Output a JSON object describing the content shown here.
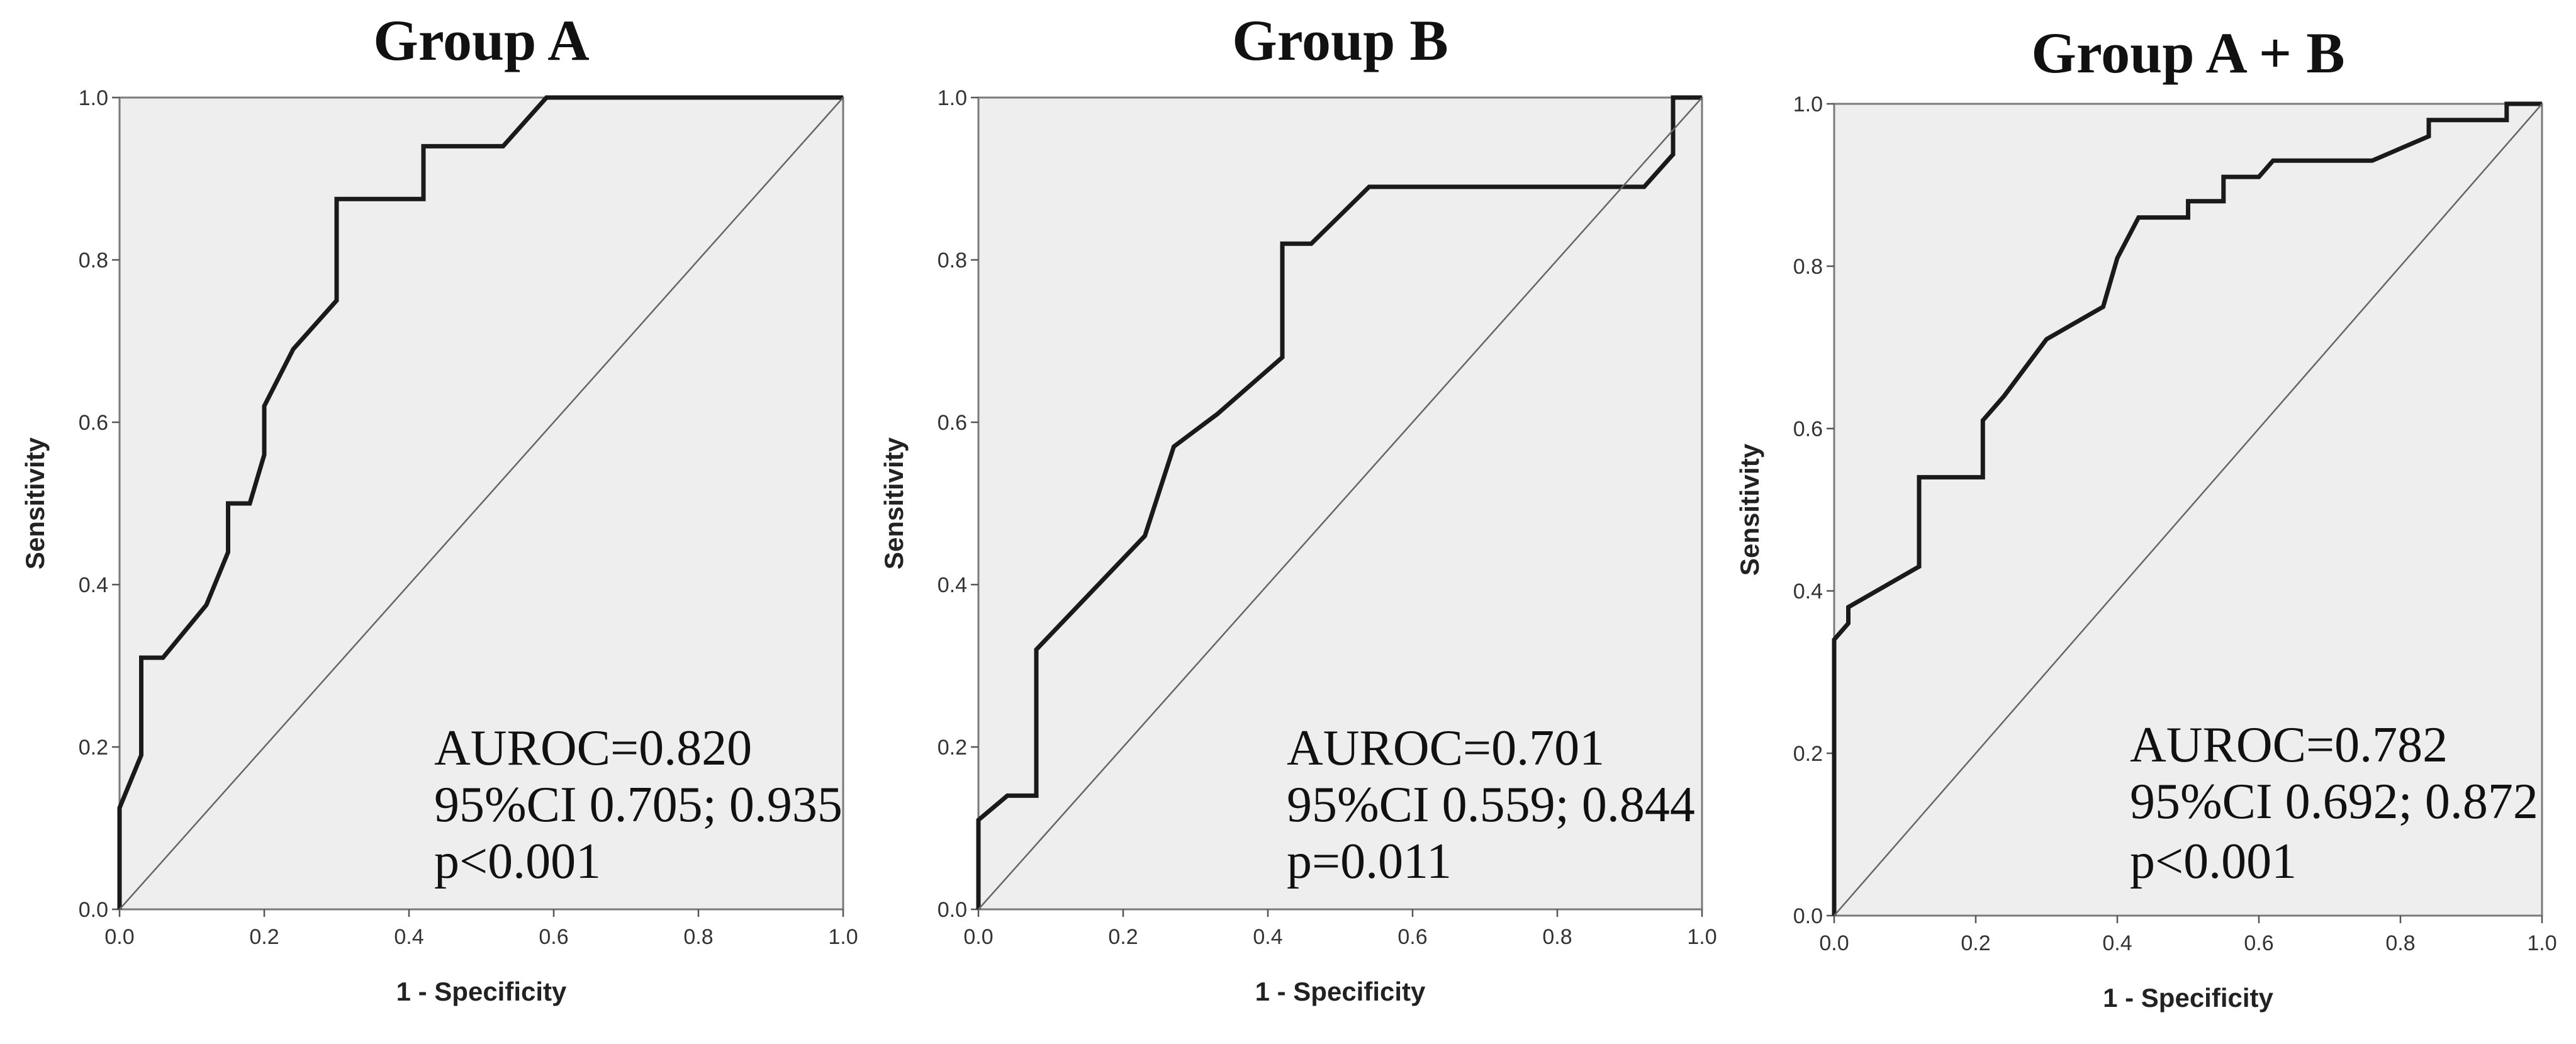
{
  "chart_data": [
    {
      "type": "line",
      "title": "Group A",
      "xlabel": "1 - Specificity",
      "ylabel": "Sensitivity",
      "xlim": [
        0,
        1
      ],
      "ylim": [
        0,
        1
      ],
      "xticks": [
        "0.0",
        "0.2",
        "0.4",
        "0.6",
        "0.8",
        "1.0"
      ],
      "yticks": [
        "0.0",
        "0.2",
        "0.4",
        "0.6",
        "0.8",
        "1.0"
      ],
      "series": [
        {
          "name": "ROC curve",
          "points": [
            [
              0,
              0
            ],
            [
              0,
              0.125
            ],
            [
              0.03,
              0.19
            ],
            [
              0.03,
              0.31
            ],
            [
              0.06,
              0.31
            ],
            [
              0.12,
              0.375
            ],
            [
              0.15,
              0.44
            ],
            [
              0.15,
              0.5
            ],
            [
              0.18,
              0.5
            ],
            [
              0.2,
              0.56
            ],
            [
              0.2,
              0.62
            ],
            [
              0.24,
              0.69
            ],
            [
              0.3,
              0.75
            ],
            [
              0.3,
              0.875
            ],
            [
              0.42,
              0.875
            ],
            [
              0.42,
              0.94
            ],
            [
              0.53,
              0.94
            ],
            [
              0.59,
              1.0
            ],
            [
              1.0,
              1.0
            ]
          ]
        },
        {
          "name": "Reference line",
          "points": [
            [
              0,
              0
            ],
            [
              1,
              1
            ]
          ]
        }
      ],
      "annotations": [
        "AUROC=0.820",
        "95%CI 0.705; 0.935",
        "p<0.001"
      ]
    },
    {
      "type": "line",
      "title": "Group B",
      "xlabel": "1 - Specificity",
      "ylabel": "Sensitivity",
      "xlim": [
        0,
        1
      ],
      "ylim": [
        0,
        1
      ],
      "xticks": [
        "0.0",
        "0.2",
        "0.4",
        "0.6",
        "0.8",
        "1.0"
      ],
      "yticks": [
        "0.0",
        "0.2",
        "0.4",
        "0.6",
        "0.8",
        "1.0"
      ],
      "series": [
        {
          "name": "ROC curve",
          "points": [
            [
              0,
              0
            ],
            [
              0,
              0.11
            ],
            [
              0.04,
              0.14
            ],
            [
              0.08,
              0.14
            ],
            [
              0.08,
              0.32
            ],
            [
              0.23,
              0.46
            ],
            [
              0.27,
              0.57
            ],
            [
              0.33,
              0.61
            ],
            [
              0.42,
              0.68
            ],
            [
              0.42,
              0.82
            ],
            [
              0.46,
              0.82
            ],
            [
              0.54,
              0.89
            ],
            [
              0.92,
              0.89
            ],
            [
              0.96,
              0.93
            ],
            [
              0.96,
              1.0
            ],
            [
              1.0,
              1.0
            ]
          ]
        },
        {
          "name": "Reference line",
          "points": [
            [
              0,
              0
            ],
            [
              1,
              1
            ]
          ]
        }
      ],
      "annotations": [
        "AUROC=0.701",
        "95%CI 0.559; 0.844",
        "p=0.011"
      ]
    },
    {
      "type": "line",
      "title": "Group A + B",
      "xlabel": "1 - Specificity",
      "ylabel": "Sensitivity",
      "xlim": [
        0,
        1
      ],
      "ylim": [
        0,
        1
      ],
      "xticks": [
        "0.0",
        "0.2",
        "0.4",
        "0.6",
        "0.8",
        "1.0"
      ],
      "yticks": [
        "0.0",
        "0.2",
        "0.4",
        "0.6",
        "0.8",
        "1.0"
      ],
      "series": [
        {
          "name": "ROC curve",
          "points": [
            [
              0,
              0
            ],
            [
              0,
              0.34
            ],
            [
              0.02,
              0.36
            ],
            [
              0.02,
              0.38
            ],
            [
              0.12,
              0.43
            ],
            [
              0.12,
              0.54
            ],
            [
              0.21,
              0.54
            ],
            [
              0.21,
              0.61
            ],
            [
              0.24,
              0.64
            ],
            [
              0.3,
              0.71
            ],
            [
              0.38,
              0.75
            ],
            [
              0.4,
              0.81
            ],
            [
              0.43,
              0.86
            ],
            [
              0.5,
              0.86
            ],
            [
              0.5,
              0.88
            ],
            [
              0.55,
              0.88
            ],
            [
              0.55,
              0.91
            ],
            [
              0.6,
              0.91
            ],
            [
              0.62,
              0.93
            ],
            [
              0.76,
              0.93
            ],
            [
              0.84,
              0.96
            ],
            [
              0.84,
              0.98
            ],
            [
              0.95,
              0.98
            ],
            [
              0.95,
              1.0
            ],
            [
              1.0,
              1.0
            ]
          ]
        },
        {
          "name": "Reference line",
          "points": [
            [
              0,
              0
            ],
            [
              1,
              1
            ]
          ]
        }
      ],
      "annotations": [
        "AUROC=0.782",
        "95%CI 0.692; 0.872",
        "p<0.001"
      ]
    }
  ]
}
